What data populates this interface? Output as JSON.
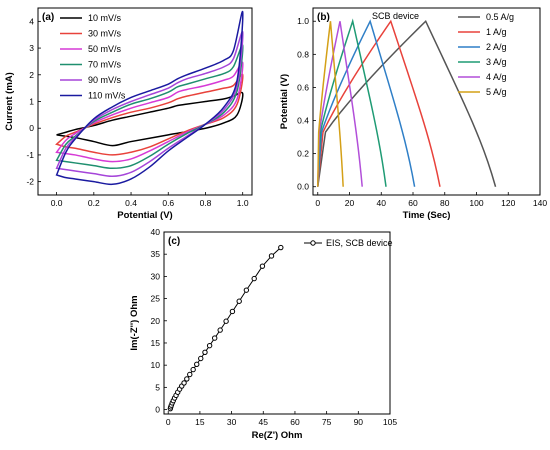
{
  "chart_data": [
    {
      "type": "line",
      "panel_label": "(a)",
      "xlabel": "Potential (V)",
      "ylabel": "Current (mA)",
      "xlim": [
        -0.1,
        1.05
      ],
      "ylim": [
        -2.5,
        4.5
      ],
      "xticks": [
        "0.0",
        "0.2",
        "0.4",
        "0.6",
        "0.8",
        "1.0"
      ],
      "xtick_values": [
        0.0,
        0.2,
        0.4,
        0.6,
        0.8,
        1.0
      ],
      "yticks": [
        "-2",
        "-1",
        "0",
        "1",
        "2",
        "3",
        "4"
      ],
      "ytick_values": [
        -2,
        -1,
        0,
        1,
        2,
        3,
        4
      ],
      "legend_position": "top-left",
      "series": [
        {
          "name": "10 mV/s",
          "color": "#000000",
          "upper": [
            [
              0.0,
              -0.25
            ],
            [
              0.05,
              -0.15
            ],
            [
              0.1,
              -0.05
            ],
            [
              0.2,
              0.1
            ],
            [
              0.3,
              0.3
            ],
            [
              0.4,
              0.45
            ],
            [
              0.5,
              0.6
            ],
            [
              0.6,
              0.75
            ],
            [
              0.65,
              0.85
            ],
            [
              0.7,
              0.9
            ],
            [
              0.8,
              1.0
            ],
            [
              0.9,
              1.1
            ],
            [
              0.95,
              1.2
            ],
            [
              1.0,
              1.3
            ]
          ],
          "lower": [
            [
              1.0,
              1.3
            ],
            [
              0.97,
              0.5
            ],
            [
              0.9,
              0.2
            ],
            [
              0.8,
              0.0
            ],
            [
              0.6,
              -0.25
            ],
            [
              0.4,
              -0.5
            ],
            [
              0.3,
              -0.65
            ],
            [
              0.2,
              -0.5
            ],
            [
              0.1,
              -0.35
            ],
            [
              0.05,
              -0.3
            ],
            [
              0.0,
              -0.25
            ]
          ]
        },
        {
          "name": "30 mV/s",
          "color": "#e8423b",
          "upper": [
            [
              0.0,
              -0.6
            ],
            [
              0.05,
              -0.3
            ],
            [
              0.1,
              -0.15
            ],
            [
              0.2,
              0.15
            ],
            [
              0.3,
              0.4
            ],
            [
              0.4,
              0.6
            ],
            [
              0.5,
              0.75
            ],
            [
              0.6,
              0.95
            ],
            [
              0.65,
              1.1
            ],
            [
              0.7,
              1.2
            ],
            [
              0.8,
              1.35
            ],
            [
              0.9,
              1.5
            ],
            [
              0.95,
              1.6
            ],
            [
              1.0,
              2.0
            ]
          ],
          "lower": [
            [
              1.0,
              2.0
            ],
            [
              0.97,
              0.9
            ],
            [
              0.9,
              0.4
            ],
            [
              0.8,
              0.15
            ],
            [
              0.7,
              -0.1
            ],
            [
              0.6,
              -0.4
            ],
            [
              0.5,
              -0.7
            ],
            [
              0.4,
              -0.9
            ],
            [
              0.3,
              -1.0
            ],
            [
              0.2,
              -0.9
            ],
            [
              0.1,
              -0.75
            ],
            [
              0.05,
              -0.7
            ],
            [
              0.0,
              -0.6
            ]
          ]
        },
        {
          "name": "50 mV/s",
          "color": "#d63ad6",
          "upper": [
            [
              0.0,
              -0.9
            ],
            [
              0.05,
              -0.45
            ],
            [
              0.1,
              -0.2
            ],
            [
              0.2,
              0.2
            ],
            [
              0.3,
              0.5
            ],
            [
              0.4,
              0.75
            ],
            [
              0.5,
              0.95
            ],
            [
              0.6,
              1.15
            ],
            [
              0.65,
              1.35
            ],
            [
              0.7,
              1.45
            ],
            [
              0.8,
              1.6
            ],
            [
              0.9,
              1.8
            ],
            [
              0.95,
              1.95
            ],
            [
              1.0,
              2.45
            ]
          ],
          "lower": [
            [
              1.0,
              2.45
            ],
            [
              0.97,
              1.1
            ],
            [
              0.9,
              0.5
            ],
            [
              0.8,
              0.15
            ],
            [
              0.7,
              -0.15
            ],
            [
              0.6,
              -0.5
            ],
            [
              0.5,
              -0.85
            ],
            [
              0.4,
              -1.15
            ],
            [
              0.3,
              -1.25
            ],
            [
              0.2,
              -1.15
            ],
            [
              0.1,
              -1.0
            ],
            [
              0.05,
              -0.95
            ],
            [
              0.0,
              -0.9
            ]
          ]
        },
        {
          "name": "70 mV/s",
          "color": "#1f8f6f",
          "upper": [
            [
              0.0,
              -1.2
            ],
            [
              0.05,
              -0.6
            ],
            [
              0.1,
              -0.3
            ],
            [
              0.2,
              0.25
            ],
            [
              0.3,
              0.6
            ],
            [
              0.4,
              0.9
            ],
            [
              0.5,
              1.1
            ],
            [
              0.6,
              1.35
            ],
            [
              0.65,
              1.55
            ],
            [
              0.7,
              1.65
            ],
            [
              0.8,
              1.85
            ],
            [
              0.9,
              2.05
            ],
            [
              0.95,
              2.3
            ],
            [
              1.0,
              3.1
            ]
          ],
          "lower": [
            [
              1.0,
              3.1
            ],
            [
              0.97,
              1.4
            ],
            [
              0.9,
              0.6
            ],
            [
              0.8,
              0.15
            ],
            [
              0.7,
              -0.2
            ],
            [
              0.6,
              -0.6
            ],
            [
              0.5,
              -1.05
            ],
            [
              0.4,
              -1.4
            ],
            [
              0.3,
              -1.5
            ],
            [
              0.2,
              -1.4
            ],
            [
              0.1,
              -1.3
            ],
            [
              0.05,
              -1.25
            ],
            [
              0.0,
              -1.2
            ]
          ]
        },
        {
          "name": "90 mV/s",
          "color": "#a545d9",
          "upper": [
            [
              0.0,
              -1.5
            ],
            [
              0.05,
              -0.75
            ],
            [
              0.1,
              -0.35
            ],
            [
              0.2,
              0.3
            ],
            [
              0.3,
              0.7
            ],
            [
              0.4,
              1.0
            ],
            [
              0.5,
              1.25
            ],
            [
              0.6,
              1.5
            ],
            [
              0.65,
              1.7
            ],
            [
              0.7,
              1.85
            ],
            [
              0.8,
              2.05
            ],
            [
              0.9,
              2.3
            ],
            [
              0.95,
              2.6
            ],
            [
              1.0,
              3.6
            ]
          ],
          "lower": [
            [
              1.0,
              3.6
            ],
            [
              0.97,
              1.6
            ],
            [
              0.9,
              0.7
            ],
            [
              0.8,
              0.15
            ],
            [
              0.7,
              -0.3
            ],
            [
              0.6,
              -0.75
            ],
            [
              0.5,
              -1.25
            ],
            [
              0.4,
              -1.65
            ],
            [
              0.3,
              -1.8
            ],
            [
              0.2,
              -1.7
            ],
            [
              0.1,
              -1.6
            ],
            [
              0.05,
              -1.55
            ],
            [
              0.0,
              -1.5
            ]
          ]
        },
        {
          "name": "110 mV/s",
          "color": "#1a1aa0",
          "upper": [
            [
              0.0,
              -1.75
            ],
            [
              0.05,
              -0.9
            ],
            [
              0.1,
              -0.4
            ],
            [
              0.2,
              0.35
            ],
            [
              0.3,
              0.8
            ],
            [
              0.4,
              1.15
            ],
            [
              0.5,
              1.4
            ],
            [
              0.6,
              1.65
            ],
            [
              0.65,
              1.85
            ],
            [
              0.7,
              2.0
            ],
            [
              0.8,
              2.25
            ],
            [
              0.9,
              2.55
            ],
            [
              0.95,
              2.9
            ],
            [
              1.0,
              4.35
            ]
          ],
          "lower": [
            [
              1.0,
              4.35
            ],
            [
              0.97,
              1.8
            ],
            [
              0.9,
              0.8
            ],
            [
              0.8,
              0.15
            ],
            [
              0.7,
              -0.35
            ],
            [
              0.6,
              -0.85
            ],
            [
              0.5,
              -1.45
            ],
            [
              0.4,
              -1.9
            ],
            [
              0.3,
              -2.1
            ],
            [
              0.2,
              -2.0
            ],
            [
              0.1,
              -1.9
            ],
            [
              0.05,
              -1.85
            ],
            [
              0.0,
              -1.75
            ]
          ]
        }
      ]
    },
    {
      "type": "line",
      "panel_label": "(b)",
      "xlabel": "Time (Sec)",
      "ylabel": "Potential (V)",
      "xlim": [
        -3,
        140
      ],
      "ylim": [
        -0.05,
        1.08
      ],
      "xticks": [
        "0",
        "20",
        "40",
        "60",
        "80",
        "100",
        "120",
        "140"
      ],
      "xtick_values": [
        0,
        20,
        40,
        60,
        80,
        100,
        120,
        140
      ],
      "yticks": [
        "0.0",
        "0.2",
        "0.4",
        "0.6",
        "0.8",
        "1.0"
      ],
      "ytick_values": [
        0.0,
        0.2,
        0.4,
        0.6,
        0.8,
        1.0
      ],
      "annotation": "SCB device",
      "legend_position": "top-right",
      "series": [
        {
          "name": "0.5 A/g",
          "color": "#555555",
          "t_peak": 68,
          "t_end": 112
        },
        {
          "name": "1 A/g",
          "color": "#e8423b",
          "t_peak": 46,
          "t_end": 77
        },
        {
          "name": "2 A/g",
          "color": "#2f7fc7",
          "t_peak": 33,
          "t_end": 61
        },
        {
          "name": "3 A/g",
          "color": "#1f9b74",
          "t_peak": 22,
          "t_end": 43
        },
        {
          "name": "4 A/g",
          "color": "#b24fd9",
          "t_peak": 14,
          "t_end": 28
        },
        {
          "name": "5 A/g",
          "color": "#d4a017",
          "t_peak": 8,
          "t_end": 16
        }
      ]
    },
    {
      "type": "scatter",
      "panel_label": "(c)",
      "xlabel": "Re(Z') Ohm",
      "ylabel": "Im(-Z'') Ohm",
      "xlim": [
        -2,
        105
      ],
      "ylim": [
        -1,
        40
      ],
      "xticks": [
        "0",
        "15",
        "30",
        "45",
        "60",
        "75",
        "90",
        "105"
      ],
      "xtick_values": [
        0,
        15,
        30,
        45,
        60,
        75,
        90,
        105
      ],
      "yticks": [
        "0",
        "5",
        "10",
        "15",
        "20",
        "25",
        "30",
        "35",
        "40"
      ],
      "ytick_values": [
        0,
        5,
        10,
        15,
        20,
        25,
        30,
        35,
        40
      ],
      "legend_position": "top-right",
      "series": [
        {
          "name": "EIS, SCB device",
          "color": "#000000",
          "points": [
            [
              1.0,
              0.2
            ],
            [
              1.2,
              0.6
            ],
            [
              1.5,
              1.0
            ],
            [
              1.9,
              1.5
            ],
            [
              2.4,
              2.0
            ],
            [
              3.0,
              2.6
            ],
            [
              3.7,
              3.2
            ],
            [
              4.5,
              3.9
            ],
            [
              5.4,
              4.6
            ],
            [
              6.4,
              5.3
            ],
            [
              7.5,
              6.0
            ],
            [
              8.8,
              6.9
            ],
            [
              10.2,
              7.9
            ],
            [
              11.8,
              9.0
            ],
            [
              13.5,
              10.2
            ],
            [
              15.4,
              11.5
            ],
            [
              17.4,
              12.9
            ],
            [
              19.6,
              14.4
            ],
            [
              22.0,
              16.1
            ],
            [
              24.6,
              17.9
            ],
            [
              27.4,
              19.9
            ],
            [
              30.4,
              22.1
            ],
            [
              33.6,
              24.4
            ],
            [
              37.0,
              26.9
            ],
            [
              40.7,
              29.5
            ],
            [
              44.6,
              32.3
            ],
            [
              48.9,
              34.6
            ],
            [
              53.3,
              36.5
            ]
          ]
        }
      ]
    }
  ]
}
